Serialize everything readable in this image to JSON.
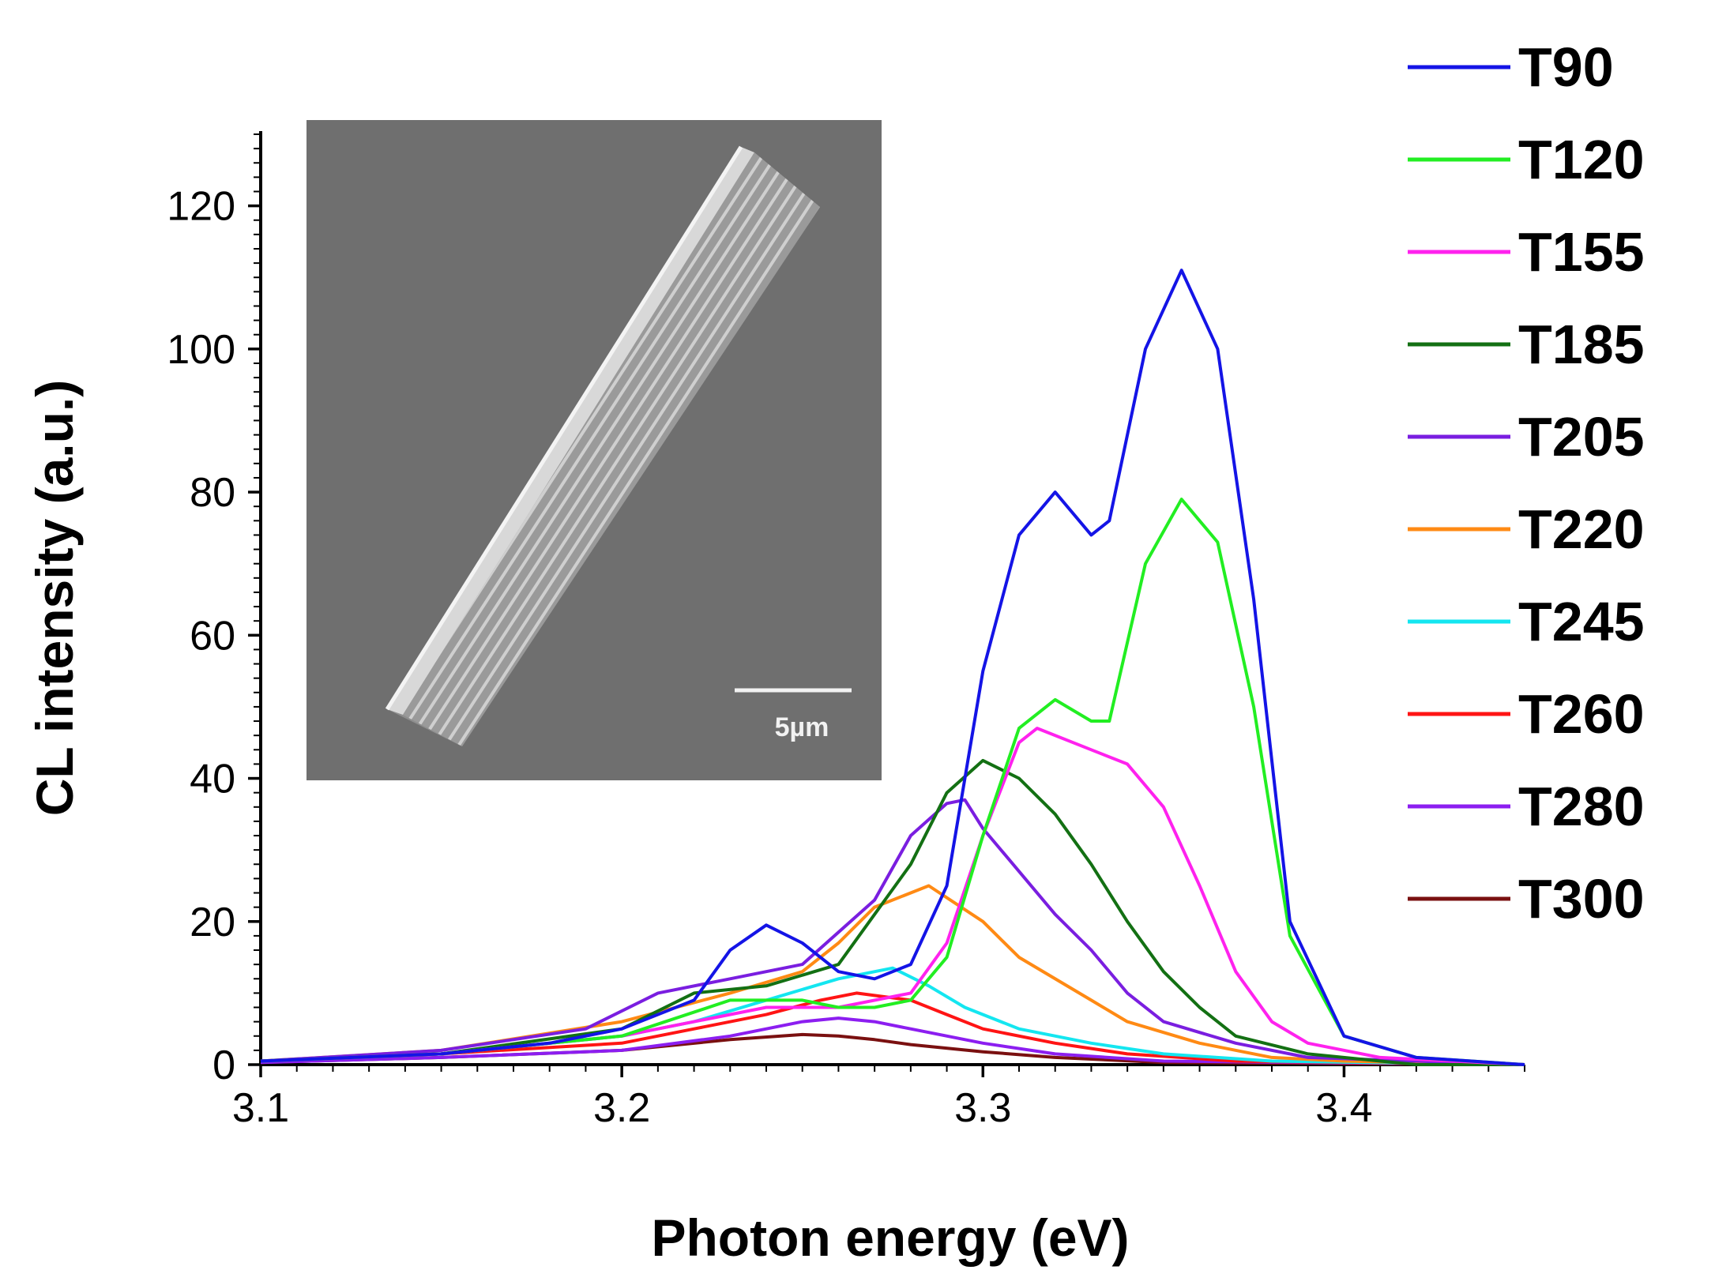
{
  "chart_data": {
    "type": "line",
    "title": "",
    "xlabel": "Photon energy (eV)",
    "ylabel": "CL intensity (a.u.)",
    "xlim": [
      3.1,
      3.45
    ],
    "ylim": [
      0,
      130
    ],
    "x_ticks": [
      3.1,
      3.2,
      3.3,
      3.4
    ],
    "x_tick_labels": [
      "3.1",
      "3.2",
      "3.3",
      "3.4"
    ],
    "y_ticks": [
      0,
      20,
      40,
      60,
      80,
      100,
      120
    ],
    "y_tick_labels": [
      "0",
      "20",
      "40",
      "60",
      "80",
      "100",
      "120"
    ],
    "grid": false,
    "legend_position": "right",
    "inset": {
      "description": "SEM image",
      "scale_bar_label": "5µm"
    },
    "series": [
      {
        "name": "T90",
        "color": "#1414e6",
        "points": [
          [
            3.1,
            0.5
          ],
          [
            3.15,
            1.5
          ],
          [
            3.18,
            3
          ],
          [
            3.2,
            5
          ],
          [
            3.22,
            9
          ],
          [
            3.23,
            16
          ],
          [
            3.24,
            19.5
          ],
          [
            3.25,
            17
          ],
          [
            3.26,
            13
          ],
          [
            3.27,
            12
          ],
          [
            3.28,
            14
          ],
          [
            3.29,
            25
          ],
          [
            3.3,
            55
          ],
          [
            3.31,
            74
          ],
          [
            3.32,
            80
          ],
          [
            3.33,
            74
          ],
          [
            3.335,
            76
          ],
          [
            3.345,
            100
          ],
          [
            3.355,
            111
          ],
          [
            3.365,
            100
          ],
          [
            3.375,
            65
          ],
          [
            3.385,
            20
          ],
          [
            3.4,
            4
          ],
          [
            3.42,
            1
          ],
          [
            3.45,
            0
          ]
        ]
      },
      {
        "name": "T120",
        "color": "#22ee22",
        "points": [
          [
            3.1,
            0.5
          ],
          [
            3.15,
            1.5
          ],
          [
            3.2,
            4
          ],
          [
            3.23,
            9
          ],
          [
            3.25,
            9
          ],
          [
            3.26,
            8
          ],
          [
            3.27,
            8
          ],
          [
            3.28,
            9
          ],
          [
            3.29,
            15
          ],
          [
            3.3,
            32
          ],
          [
            3.31,
            47
          ],
          [
            3.32,
            51
          ],
          [
            3.33,
            48
          ],
          [
            3.335,
            48
          ],
          [
            3.345,
            70
          ],
          [
            3.355,
            79
          ],
          [
            3.365,
            73
          ],
          [
            3.375,
            50
          ],
          [
            3.385,
            18
          ],
          [
            3.4,
            4
          ],
          [
            3.42,
            1
          ],
          [
            3.45,
            0
          ]
        ]
      },
      {
        "name": "T155",
        "color": "#ff22ee",
        "points": [
          [
            3.1,
            0.5
          ],
          [
            3.15,
            1.5
          ],
          [
            3.2,
            4
          ],
          [
            3.22,
            6
          ],
          [
            3.24,
            8
          ],
          [
            3.26,
            8
          ],
          [
            3.28,
            10
          ],
          [
            3.29,
            17
          ],
          [
            3.3,
            32
          ],
          [
            3.31,
            45
          ],
          [
            3.315,
            47
          ],
          [
            3.33,
            44
          ],
          [
            3.34,
            42
          ],
          [
            3.35,
            36
          ],
          [
            3.36,
            25
          ],
          [
            3.37,
            13
          ],
          [
            3.38,
            6
          ],
          [
            3.39,
            3
          ],
          [
            3.41,
            1
          ],
          [
            3.45,
            0
          ]
        ]
      },
      {
        "name": "T185",
        "color": "#137013",
        "points": [
          [
            3.1,
            0.5
          ],
          [
            3.15,
            1.5
          ],
          [
            3.2,
            5
          ],
          [
            3.22,
            10
          ],
          [
            3.24,
            11
          ],
          [
            3.26,
            14
          ],
          [
            3.28,
            28
          ],
          [
            3.29,
            38
          ],
          [
            3.3,
            42.5
          ],
          [
            3.31,
            40
          ],
          [
            3.32,
            35
          ],
          [
            3.33,
            28
          ],
          [
            3.34,
            20
          ],
          [
            3.35,
            13
          ],
          [
            3.36,
            8
          ],
          [
            3.37,
            4
          ],
          [
            3.39,
            1.5
          ],
          [
            3.42,
            0
          ],
          [
            3.45,
            0
          ]
        ]
      },
      {
        "name": "T205",
        "color": "#7a1ee0",
        "points": [
          [
            3.1,
            0.5
          ],
          [
            3.15,
            2
          ],
          [
            3.19,
            5
          ],
          [
            3.21,
            10
          ],
          [
            3.23,
            12
          ],
          [
            3.25,
            14
          ],
          [
            3.27,
            23
          ],
          [
            3.28,
            32
          ],
          [
            3.29,
            36.5
          ],
          [
            3.295,
            37
          ],
          [
            3.3,
            33
          ],
          [
            3.31,
            27
          ],
          [
            3.32,
            21
          ],
          [
            3.33,
            16
          ],
          [
            3.34,
            10
          ],
          [
            3.35,
            6
          ],
          [
            3.37,
            3
          ],
          [
            3.39,
            1
          ],
          [
            3.45,
            0
          ]
        ]
      },
      {
        "name": "T220",
        "color": "#ff8a14",
        "points": [
          [
            3.1,
            0.5
          ],
          [
            3.15,
            2
          ],
          [
            3.2,
            6
          ],
          [
            3.23,
            10
          ],
          [
            3.25,
            13
          ],
          [
            3.26,
            17
          ],
          [
            3.27,
            22
          ],
          [
            3.285,
            25
          ],
          [
            3.3,
            20
          ],
          [
            3.31,
            15
          ],
          [
            3.33,
            9
          ],
          [
            3.34,
            6
          ],
          [
            3.36,
            3
          ],
          [
            3.38,
            1
          ],
          [
            3.4,
            0.5
          ],
          [
            3.45,
            0
          ]
        ]
      },
      {
        "name": "T245",
        "color": "#14e6f0",
        "points": [
          [
            3.1,
            0.5
          ],
          [
            3.15,
            1.5
          ],
          [
            3.2,
            4
          ],
          [
            3.22,
            6
          ],
          [
            3.24,
            9
          ],
          [
            3.26,
            12
          ],
          [
            3.275,
            13.5
          ],
          [
            3.285,
            11
          ],
          [
            3.295,
            8
          ],
          [
            3.31,
            5
          ],
          [
            3.33,
            3
          ],
          [
            3.35,
            1.5
          ],
          [
            3.38,
            0.5
          ],
          [
            3.45,
            0
          ]
        ]
      },
      {
        "name": "T260",
        "color": "#ff1414",
        "points": [
          [
            3.1,
            0.5
          ],
          [
            3.15,
            1.5
          ],
          [
            3.2,
            3
          ],
          [
            3.22,
            5
          ],
          [
            3.24,
            7
          ],
          [
            3.255,
            9
          ],
          [
            3.265,
            10
          ],
          [
            3.28,
            9
          ],
          [
            3.29,
            7
          ],
          [
            3.3,
            5
          ],
          [
            3.32,
            3
          ],
          [
            3.34,
            1.5
          ],
          [
            3.37,
            0.5
          ],
          [
            3.45,
            0
          ]
        ]
      },
      {
        "name": "T280",
        "color": "#8c1ef0",
        "points": [
          [
            3.1,
            0.3
          ],
          [
            3.15,
            1
          ],
          [
            3.2,
            2
          ],
          [
            3.23,
            4
          ],
          [
            3.25,
            6
          ],
          [
            3.26,
            6.5
          ],
          [
            3.27,
            6
          ],
          [
            3.28,
            5
          ],
          [
            3.3,
            3
          ],
          [
            3.32,
            1.5
          ],
          [
            3.35,
            0.5
          ],
          [
            3.45,
            0
          ]
        ]
      },
      {
        "name": "T300",
        "color": "#7a1010",
        "points": [
          [
            3.1,
            0.3
          ],
          [
            3.15,
            1
          ],
          [
            3.2,
            2
          ],
          [
            3.23,
            3.5
          ],
          [
            3.25,
            4.2
          ],
          [
            3.26,
            4
          ],
          [
            3.27,
            3.5
          ],
          [
            3.28,
            2.8
          ],
          [
            3.3,
            1.8
          ],
          [
            3.32,
            1
          ],
          [
            3.35,
            0.3
          ],
          [
            3.45,
            0
          ]
        ]
      }
    ]
  }
}
